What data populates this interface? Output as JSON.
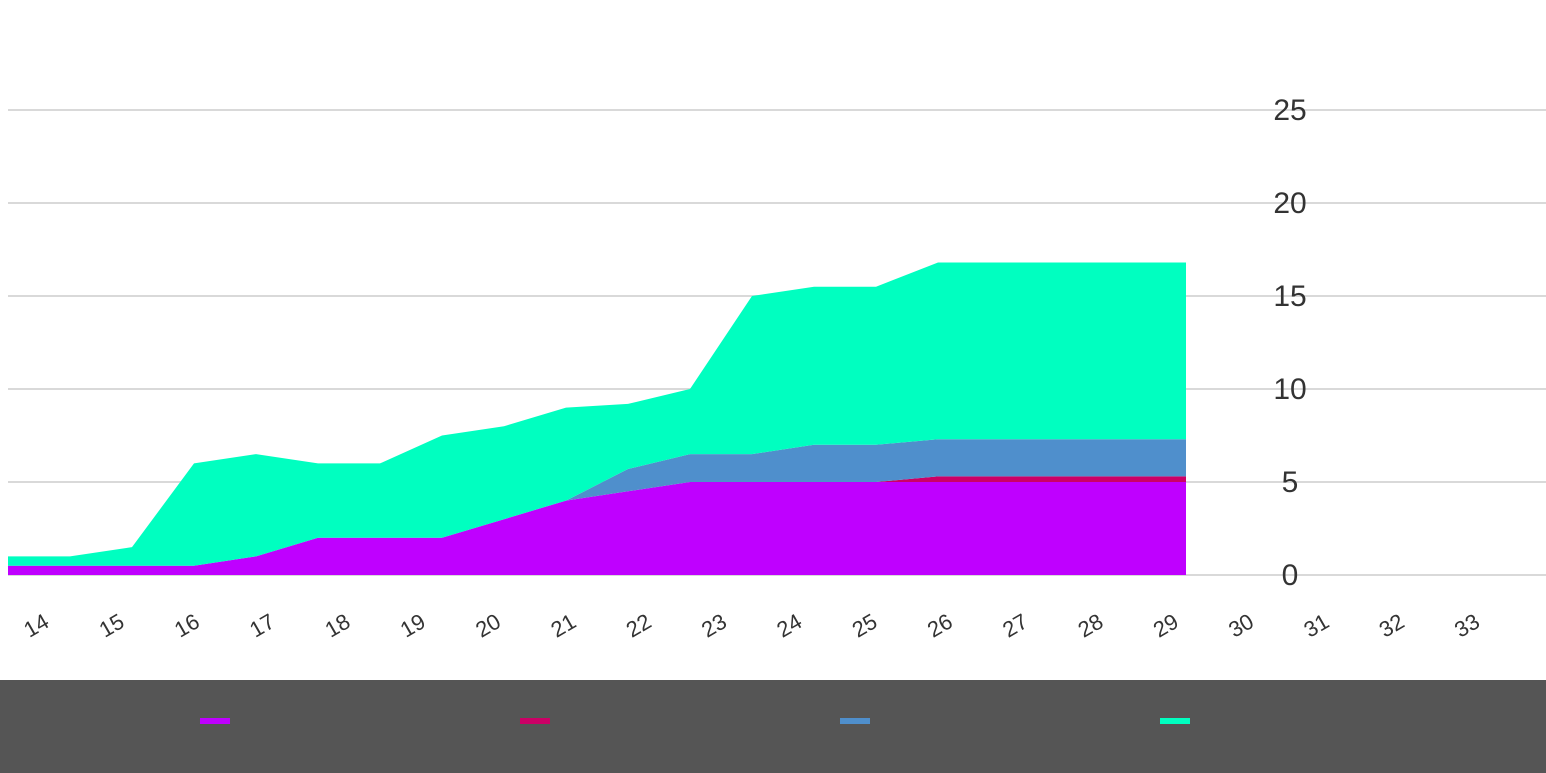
{
  "chart_data": {
    "type": "area",
    "stacked": true,
    "title": "",
    "xlabel": "",
    "ylabel": "",
    "x": [
      "14",
      "15",
      "16",
      "17",
      "18",
      "19",
      "20",
      "21",
      "22",
      "23",
      "24",
      "25",
      "26",
      "27",
      "28",
      "29",
      "30",
      "31",
      "32",
      "33"
    ],
    "ylim": [
      0,
      25
    ],
    "yticks": [
      0,
      5,
      10,
      15,
      20,
      25
    ],
    "grid": true,
    "legend_position": "bottom",
    "series": [
      {
        "color": "#bf00ff",
        "values": [
          0.5,
          0.5,
          0.5,
          0.5,
          1.0,
          2.0,
          2.0,
          2.0,
          3.0,
          4.0,
          4.5,
          5.0,
          5.0,
          5.0,
          5.0,
          5.0,
          5.0,
          5.0,
          5.0,
          5.0
        ]
      },
      {
        "color": "#cc0066",
        "values": [
          0,
          0,
          0,
          0,
          0,
          0,
          0,
          0,
          0,
          0,
          0,
          0,
          0,
          0,
          0,
          0.3,
          0.3,
          0.3,
          0.3,
          0.3
        ]
      },
      {
        "color": "#4f8fcc",
        "values": [
          0,
          0,
          0,
          0,
          0,
          0,
          0,
          0,
          0,
          0,
          1.2,
          1.5,
          1.5,
          2.0,
          2.0,
          2.0,
          2.0,
          2.0,
          2.0,
          2.0
        ]
      },
      {
        "color": "#00ffc0",
        "values": [
          0.5,
          0.5,
          1.0,
          5.5,
          5.5,
          4.0,
          4.0,
          5.5,
          5.0,
          5.0,
          3.5,
          3.5,
          8.5,
          8.5,
          8.5,
          9.5,
          9.5,
          9.5,
          9.5,
          9.5
        ]
      }
    ]
  }
}
